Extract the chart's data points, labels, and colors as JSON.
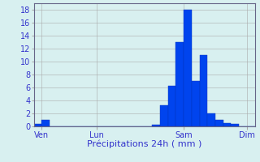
{
  "title": "",
  "xlabel": "Précipitations 24h ( mm )",
  "background_color": "#d8f0f0",
  "bar_color": "#0044ee",
  "bar_edge_color": "#0033bb",
  "grid_color": "#aaaaaa",
  "ylim": [
    0,
    19
  ],
  "yticks": [
    0,
    2,
    4,
    6,
    8,
    10,
    12,
    14,
    16,
    18
  ],
  "num_bars": 28,
  "bar_values": [
    0.4,
    1.0,
    0,
    0,
    0,
    0,
    0,
    0,
    0,
    0,
    0,
    0,
    0,
    0,
    0,
    0.3,
    3.2,
    6.2,
    13.0,
    18.0,
    7.0,
    11.0,
    2.0,
    1.0,
    0.5,
    0.4,
    0,
    0
  ],
  "xlabel_color": "#3333cc",
  "xlabel_fontsize": 8,
  "tick_color": "#3333cc",
  "tick_fontsize": 7,
  "ytick_fontsize": 7,
  "ytick_color": "#3333cc",
  "xtick_positions": [
    1,
    8,
    19,
    27
  ],
  "xtick_labels": [
    "Ven",
    "Lun",
    "Sam",
    "Dim"
  ]
}
